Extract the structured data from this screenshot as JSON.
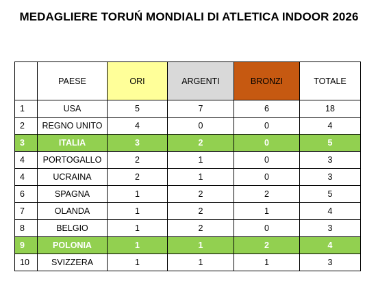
{
  "title": "MEDAGLIERE TORUŃ MONDIALI DI ATLETICA INDOOR 2026",
  "table": {
    "headers": [
      "",
      "PAESE",
      "ORI",
      "ARGENTI",
      "BRONZI",
      "TOTALE"
    ],
    "header_colors": {
      "ori": "#ffff99",
      "argenti": "#d9d9d9",
      "bronzi": "#c65911"
    },
    "highlight_color": "#92d050",
    "rows": [
      {
        "pos": "1",
        "country": "USA",
        "gold": "5",
        "silver": "7",
        "bronze": "6",
        "total": "18",
        "highlight": false
      },
      {
        "pos": "2",
        "country": "REGNO UNITO",
        "gold": "4",
        "silver": "0",
        "bronze": "0",
        "total": "4",
        "highlight": false
      },
      {
        "pos": "3",
        "country": "ITALIA",
        "gold": "3",
        "silver": "2",
        "bronze": "0",
        "total": "5",
        "highlight": true
      },
      {
        "pos": "4",
        "country": "PORTOGALLO",
        "gold": "2",
        "silver": "1",
        "bronze": "0",
        "total": "3",
        "highlight": false
      },
      {
        "pos": "4",
        "country": "UCRAINA",
        "gold": "2",
        "silver": "1",
        "bronze": "0",
        "total": "3",
        "highlight": false
      },
      {
        "pos": "6",
        "country": "SPAGNA",
        "gold": "1",
        "silver": "2",
        "bronze": "2",
        "total": "5",
        "highlight": false
      },
      {
        "pos": "7",
        "country": "OLANDA",
        "gold": "1",
        "silver": "2",
        "bronze": "1",
        "total": "4",
        "highlight": false
      },
      {
        "pos": "8",
        "country": "BELGIO",
        "gold": "1",
        "silver": "2",
        "bronze": "0",
        "total": "3",
        "highlight": false
      },
      {
        "pos": "9",
        "country": "POLONIA",
        "gold": "1",
        "silver": "1",
        "bronze": "2",
        "total": "4",
        "highlight": true
      },
      {
        "pos": "10",
        "country": "SVIZZERA",
        "gold": "1",
        "silver": "1",
        "bronze": "1",
        "total": "3",
        "highlight": false
      }
    ]
  }
}
